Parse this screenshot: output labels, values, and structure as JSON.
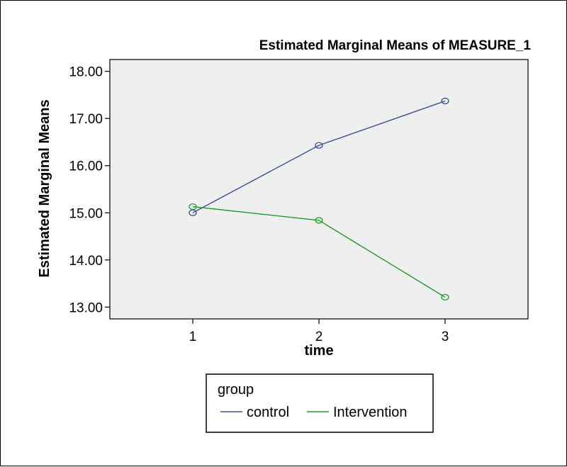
{
  "chart_data": {
    "type": "line",
    "title": "Estimated Marginal Means of MEASURE_1",
    "xlabel": "time",
    "ylabel": "Estimated Marginal Means",
    "categories": [
      "1",
      "2",
      "3"
    ],
    "x_tick_labels": [
      "1",
      "2",
      "3"
    ],
    "y_tick_labels": [
      "13.00",
      "14.00",
      "15.00",
      "16.00",
      "17.00",
      "18.00"
    ],
    "ylim": [
      12.75,
      18.25
    ],
    "grid": false,
    "legend": {
      "title": "group",
      "position": "bottom"
    },
    "plot_background": "#efefef",
    "series": [
      {
        "name": "control",
        "color": "#3a4f96",
        "values": [
          15.0,
          16.43,
          17.37
        ]
      },
      {
        "name": "Intervention",
        "color": "#1f9e2a",
        "values": [
          15.13,
          14.84,
          13.21
        ]
      }
    ]
  }
}
